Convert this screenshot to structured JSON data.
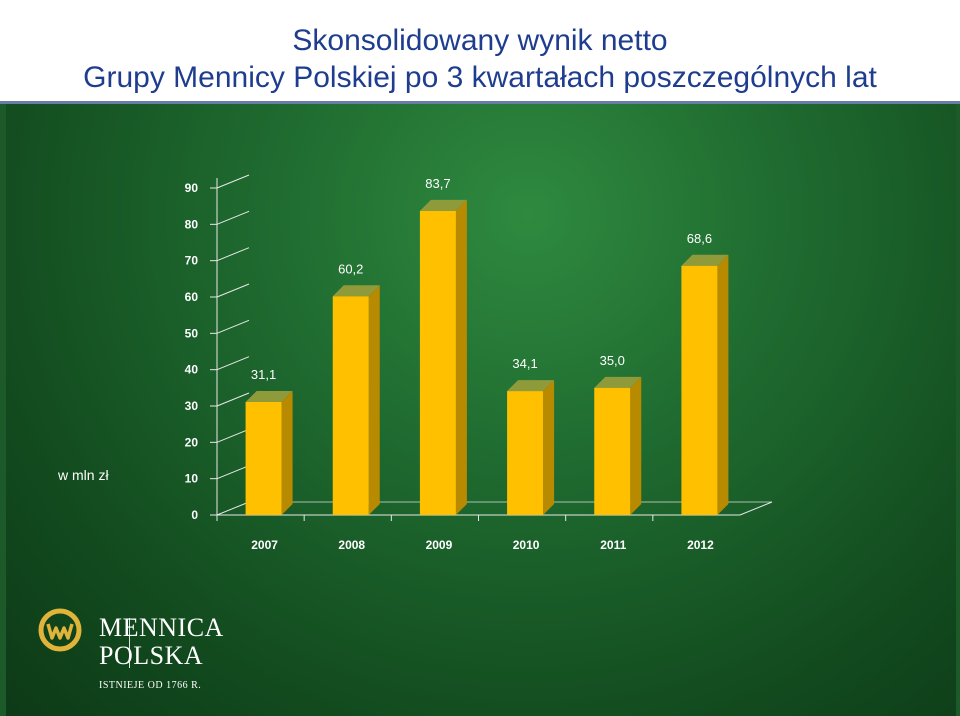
{
  "title": {
    "line1": "Skonsolidowany wynik netto",
    "line2": "Grupy Mennicy Polskiej po 3 kwartałach poszczególnych lat"
  },
  "unit_label": "w mln zł",
  "colors": {
    "bar_front": "#ffc000",
    "bar_side": "#b88a00",
    "bar_top": "#8f9a3a",
    "title_text": "#1f3d8f",
    "background": "#1f6b30"
  },
  "chart_data": {
    "type": "bar",
    "categories": [
      "2007",
      "2008",
      "2009",
      "2010",
      "2011",
      "2012"
    ],
    "values": [
      31.1,
      60.2,
      83.7,
      34.1,
      35.0,
      68.6
    ],
    "value_labels": [
      "31,1",
      "60,2",
      "83,7",
      "34,1",
      "35,0",
      "68,6"
    ],
    "y_ticks": [
      "0",
      "10",
      "20",
      "30",
      "40",
      "50",
      "60",
      "70",
      "80",
      "90"
    ],
    "ylim": [
      0,
      90
    ],
    "style": "3d-column",
    "grid": false,
    "legend": "none"
  },
  "logo": {
    "name_line1": "MENNICA",
    "name_line2": "POLSKA",
    "tagline": "ISTNIEJE OD 1766 R."
  }
}
